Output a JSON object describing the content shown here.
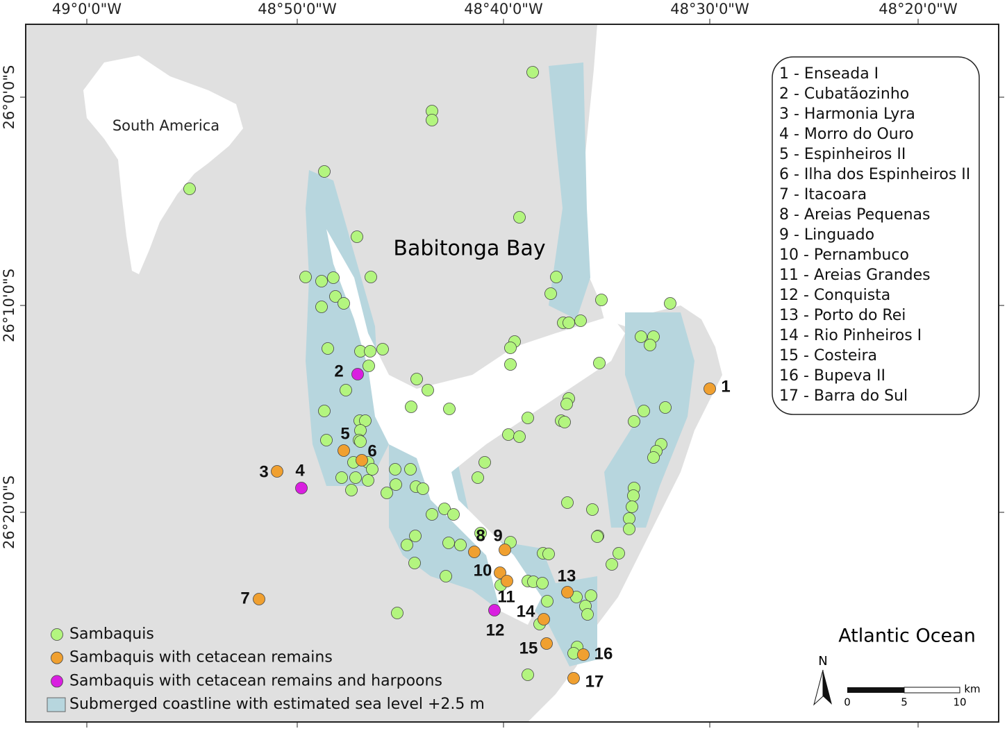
{
  "longitude_labels": [
    "49°0'0\"W",
    "48°50'0\"W",
    "48°40'0\"W",
    "48°30'0\"W",
    "48°20'0\"W"
  ],
  "latitude_labels": [
    "26°0'0\"S",
    "26°10'0\"S",
    "26°20'0\"S"
  ],
  "inset_label": "South America",
  "bay_label": "Babitonga Bay",
  "ocean_label": "Atlantic Ocean",
  "site_list": [
    "1 - Enseada I",
    "2 - Cubatãozinho",
    "3 - Harmonia Lyra",
    "4 - Morro do Ouro",
    "5 - Espinheiros II",
    "6 - Ilha dos Espinheiros II",
    "7 - Itacoara",
    "8 - Areias Pequenas",
    "9 - Linguado",
    "10 - Pernambuco",
    "11 - Areias Grandes",
    "12 - Conquista",
    "13 - Porto do Rei",
    "14 - Rio Pinheiros I",
    "15 - Costeira",
    "16 - Bupeva II",
    "17 - Barra do Sul"
  ],
  "site_numbers": [
    "1",
    "2",
    "3",
    "4",
    "5",
    "6",
    "7",
    "8",
    "9",
    "10",
    "11",
    "12",
    "13",
    "14",
    "15",
    "16",
    "17"
  ],
  "legend": [
    {
      "label": "Sambaquis",
      "color": "#b3f57f"
    },
    {
      "label": "Sambaquis with cetacean remains",
      "color": "#f0a030"
    },
    {
      "label": "Sambaquis with cetacean remains and harpoons",
      "color": "#d91fe0"
    },
    {
      "label": "Submerged coastline with estimated sea level +2.5 m",
      "color": "#b7d6de"
    }
  ],
  "north_label": "N",
  "scale_bar": {
    "unit": "km",
    "ticks": [
      0,
      5,
      10
    ]
  }
}
